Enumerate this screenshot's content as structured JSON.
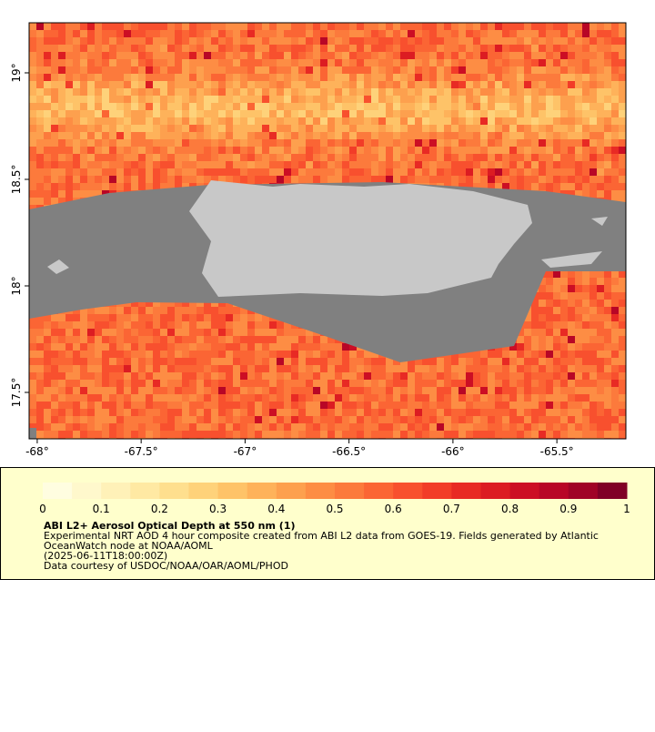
{
  "map": {
    "lonlim": [
      -68.039,
      -65.168
    ],
    "latlim": [
      17.282,
      19.235
    ],
    "lon_ticks": [
      {
        "value": -68,
        "label": "-68°"
      },
      {
        "value": -67.5,
        "label": "-67.5°"
      },
      {
        "value": -67,
        "label": "-67°"
      },
      {
        "value": -66.5,
        "label": "-66.5°"
      },
      {
        "value": -66,
        "label": "-66°"
      },
      {
        "value": -65.5,
        "label": "-65.5°"
      }
    ],
    "lat_ticks": [
      {
        "value": 19,
        "label": "19°"
      },
      {
        "value": 18.5,
        "label": "18.5°"
      },
      {
        "value": 18,
        "label": "18°"
      },
      {
        "value": 17.5,
        "label": "17.5°"
      }
    ]
  },
  "colorbar": {
    "lim": [
      0,
      1
    ],
    "ticks": [
      0,
      0.1,
      0.2,
      0.3,
      0.4,
      0.5,
      0.6,
      0.7,
      0.8,
      0.9,
      1
    ],
    "colors": [
      "#fffde0",
      "#fff8cc",
      "#fff1b8",
      "#ffe9a3",
      "#fedf8e",
      "#fed27a",
      "#fec368",
      "#feb25a",
      "#fda04e",
      "#fd8d44",
      "#fc7a3c",
      "#fb6534",
      "#f8502e",
      "#f23c28",
      "#e82a24",
      "#dc1c22",
      "#cc0e24",
      "#b80626",
      "#a00326",
      "#800026"
    ]
  },
  "caption": {
    "title": "ABI L2+ Aerosol Optical Depth at 550 nm (1)",
    "lines": [
      "Experimental NRT AOD 4 hour composite created from ABI L2 data from GOES-19. Fields generated by Atlantic",
      "OceanWatch node at NOAA/AOML",
      "(2025-06-11T18:00:00Z)",
      "Data courtesy of USDOC/NOAA/OAR/AOML/PHOD"
    ]
  }
}
